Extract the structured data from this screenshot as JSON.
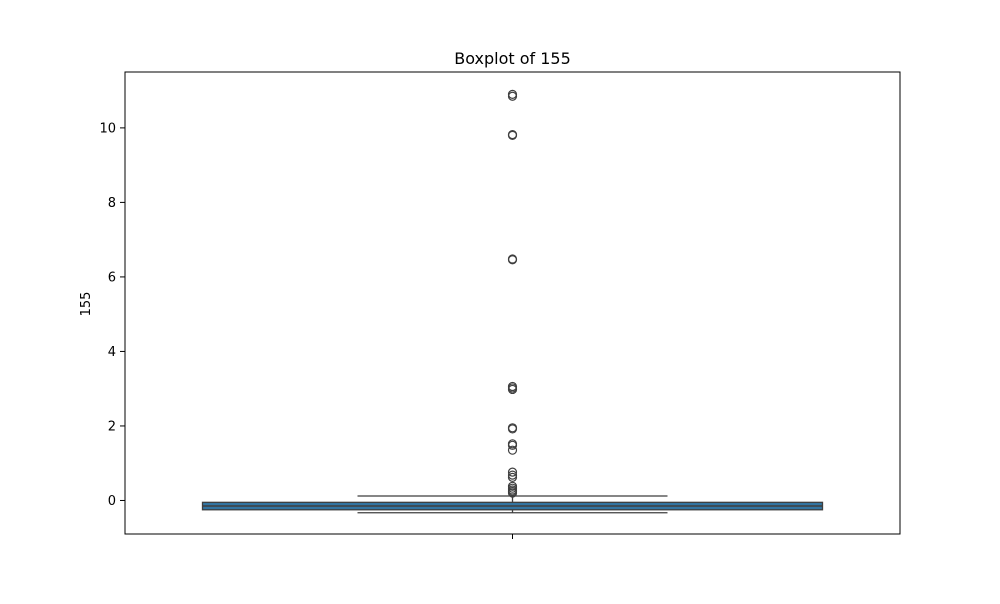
{
  "chart_data": {
    "type": "boxplot",
    "title": "Boxplot of 155",
    "xlabel": "",
    "ylabel": "155",
    "ylim": [
      -0.9,
      11.5
    ],
    "yticks": [
      0,
      2,
      4,
      6,
      8,
      10
    ],
    "grid": false,
    "box_color": "#3274a1",
    "line_color": "#3f3f3f",
    "series": [
      {
        "stats": {
          "whisker_low": -0.33,
          "q1": -0.25,
          "median": -0.15,
          "q3": -0.05,
          "whisker_high": 0.12
        },
        "outliers": [
          10.9,
          10.85,
          9.82,
          9.8,
          6.48,
          6.46,
          3.06,
          3.02,
          2.98,
          1.95,
          1.92,
          1.52,
          1.48,
          1.35,
          0.76,
          0.68,
          0.62,
          0.38,
          0.33,
          0.28,
          0.24,
          0.2
        ]
      }
    ]
  }
}
